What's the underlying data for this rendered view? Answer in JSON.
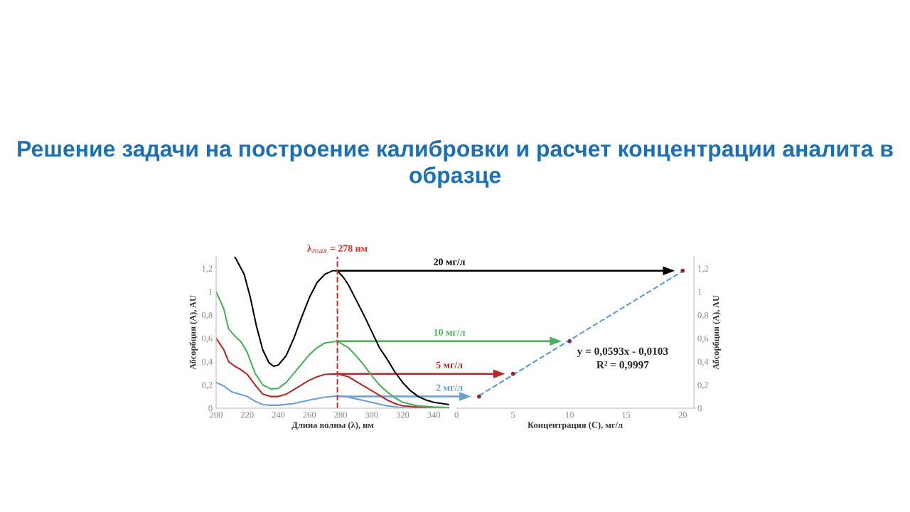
{
  "chart_data": [
    {
      "type": "line",
      "title": "Решение задачи на построение калибровки и расчет концентрации аналита в образце",
      "xlabel": "Длина волны (λ), нм",
      "ylabel": "Абсорбция (A), AU",
      "xlim": [
        200,
        350
      ],
      "xticks": [
        200,
        220,
        240,
        260,
        280,
        300,
        320,
        340
      ],
      "ylim": [
        0,
        1.3
      ],
      "yticks": [
        0,
        {
          "value": 0.2,
          "label": "0,2"
        },
        {
          "value": 0.4,
          "label": "0,4"
        },
        {
          "value": 0.6,
          "label": "0,6"
        },
        {
          "value": 0.8,
          "label": "0,8"
        },
        1,
        {
          "value": 1.2,
          "label": "1,2"
        }
      ],
      "legend": false,
      "grid": false,
      "ref_lines": [
        {
          "axis": "x",
          "value": 278,
          "label": "λ$_{max}$ = 278 нм",
          "color": "#d0312d",
          "line_style": "dashed"
        }
      ],
      "series": [
        {
          "name": "2 мг/л",
          "color": "#6a9fd4",
          "x": [
            200,
            205,
            210,
            215,
            220,
            225,
            230,
            235,
            240,
            250,
            260,
            270,
            278,
            285,
            290,
            300,
            310,
            320,
            325,
            350
          ],
          "values": [
            0.22,
            0.19,
            0.14,
            0.12,
            0.1,
            0.06,
            0.03,
            0.025,
            0.025,
            0.04,
            0.07,
            0.095,
            0.105,
            0.095,
            0.08,
            0.05,
            0.02,
            0.005,
            0,
            0
          ]
        },
        {
          "name": "5 мг/л",
          "color": "#b22a2a",
          "x": [
            200,
            205,
            208,
            212,
            216,
            220,
            225,
            230,
            235,
            240,
            245,
            250,
            255,
            260,
            265,
            270,
            278,
            285,
            290,
            295,
            300,
            305,
            310,
            315,
            320,
            330,
            350
          ],
          "values": [
            0.6,
            0.5,
            0.4,
            0.36,
            0.33,
            0.29,
            0.2,
            0.12,
            0.1,
            0.1,
            0.12,
            0.16,
            0.2,
            0.24,
            0.27,
            0.29,
            0.295,
            0.27,
            0.23,
            0.19,
            0.15,
            0.11,
            0.07,
            0.04,
            0.02,
            0.01,
            0
          ]
        },
        {
          "name": "10 мг/л",
          "color": "#4caf5a",
          "x": [
            200,
            205,
            208,
            212,
            216,
            220,
            225,
            230,
            235,
            240,
            245,
            250,
            255,
            260,
            265,
            270,
            278,
            285,
            290,
            295,
            300,
            305,
            310,
            315,
            320,
            330,
            340,
            350
          ],
          "values": [
            1.0,
            0.85,
            0.68,
            0.62,
            0.57,
            0.48,
            0.3,
            0.2,
            0.165,
            0.17,
            0.22,
            0.3,
            0.38,
            0.46,
            0.52,
            0.56,
            0.575,
            0.52,
            0.45,
            0.37,
            0.28,
            0.2,
            0.14,
            0.09,
            0.05,
            0.02,
            0.01,
            0.005
          ]
        },
        {
          "name": "20 мг/л",
          "color": "#000000",
          "x": [
            212,
            218,
            222,
            226,
            230,
            234,
            237,
            240,
            245,
            250,
            255,
            260,
            265,
            270,
            275,
            278,
            282,
            285,
            290,
            295,
            300,
            305,
            310,
            315,
            320,
            325,
            330,
            335,
            340,
            350
          ],
          "values": [
            1.3,
            1.15,
            0.95,
            0.7,
            0.5,
            0.39,
            0.36,
            0.37,
            0.45,
            0.6,
            0.78,
            0.95,
            1.08,
            1.15,
            1.18,
            1.18,
            1.12,
            1.06,
            0.93,
            0.8,
            0.66,
            0.52,
            0.42,
            0.31,
            0.22,
            0.15,
            0.1,
            0.07,
            0.05,
            0.03
          ]
        }
      ]
    },
    {
      "type": "scatter",
      "xlabel": "Концентрация (C), мг/л",
      "y2label": "Абсорбция (A), AU",
      "xlim": [
        0,
        21
      ],
      "xticks": [
        0,
        5,
        10,
        15,
        20
      ],
      "y2lim": [
        0,
        1.3
      ],
      "y2ticks": [
        0,
        {
          "value": 0.2,
          "label": "0,2"
        },
        {
          "value": 0.4,
          "label": "0,4"
        },
        {
          "value": 0.6,
          "label": "0,6"
        },
        {
          "value": 0.8,
          "label": "0,8"
        },
        1,
        {
          "value": 1.2,
          "label": "1,2"
        }
      ],
      "legend": false,
      "grid": false,
      "annotations": [
        "y = 0,0593x - 0,0103",
        "R² = 0,9997"
      ],
      "series": [
        {
          "type": "scatter",
          "axis": "y2",
          "color": "#8b2a3a",
          "marker": "circle",
          "x": [
            2,
            5,
            10,
            20
          ],
          "values": [
            0.1,
            0.295,
            0.575,
            1.18
          ]
        },
        {
          "type": "line",
          "axis": "y2",
          "color": "#5b9bd5",
          "line_style": "dashed",
          "marker": "none",
          "x": [
            2,
            20
          ],
          "values": [
            0.108,
            1.176
          ]
        }
      ]
    }
  ]
}
